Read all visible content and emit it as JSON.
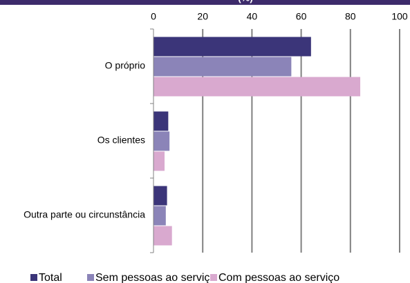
{
  "chart_data": {
    "type": "bar",
    "orientation": "horizontal",
    "title": "(%)",
    "categories": [
      "O próprio",
      "Os clientes",
      "Outra parte ou circunstância"
    ],
    "series": [
      {
        "name": "Total",
        "color": "#3b3579",
        "values": [
          64,
          6,
          5.5
        ]
      },
      {
        "name": "Sem pessoas ao serviço",
        "color": "#8b84b8",
        "values": [
          56,
          6.5,
          5
        ]
      },
      {
        "name": "Com pessoas ao serviço",
        "color": "#d9a9cf",
        "values": [
          84,
          4.5,
          7.5
        ]
      }
    ],
    "xlim": [
      0,
      100
    ],
    "xticks": [
      0,
      20,
      40,
      60,
      80,
      100
    ],
    "grid": true,
    "legend": "bottom"
  }
}
